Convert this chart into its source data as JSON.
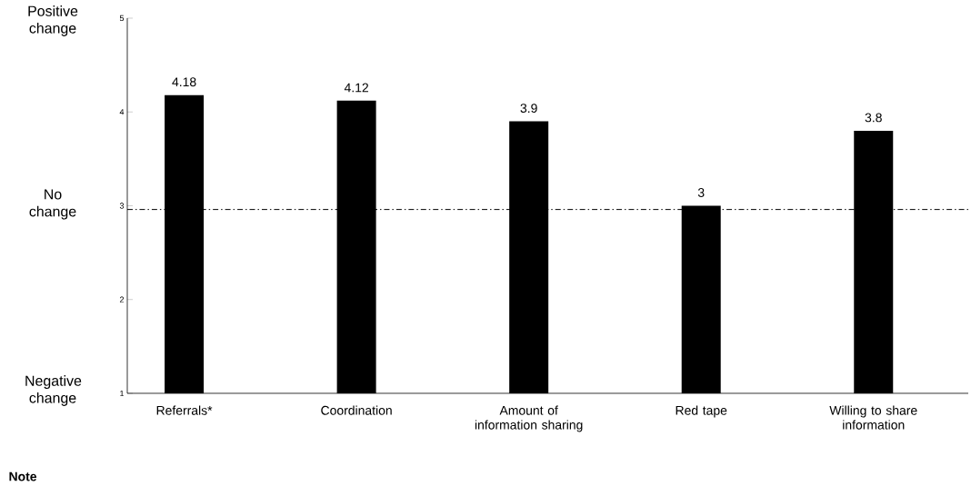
{
  "chart_data": {
    "type": "bar",
    "categories": [
      "Referrals*",
      "Coordination",
      "Amount of information sharing",
      "Red tape",
      "Willing to share information"
    ],
    "values": [
      4.18,
      4.12,
      3.9,
      3,
      3.8
    ],
    "color": "#000000",
    "data_labels": true,
    "ylim": [
      1,
      5
    ],
    "yticks": [
      1,
      2,
      3,
      4,
      5
    ],
    "grid": false,
    "ref_lines": [
      {
        "axis": "y",
        "value": 2.96,
        "color": "#000000",
        "line_style": "dashdot"
      }
    ],
    "annotations": [
      "Positive change",
      "No change",
      "Negative change",
      "Note"
    ]
  }
}
